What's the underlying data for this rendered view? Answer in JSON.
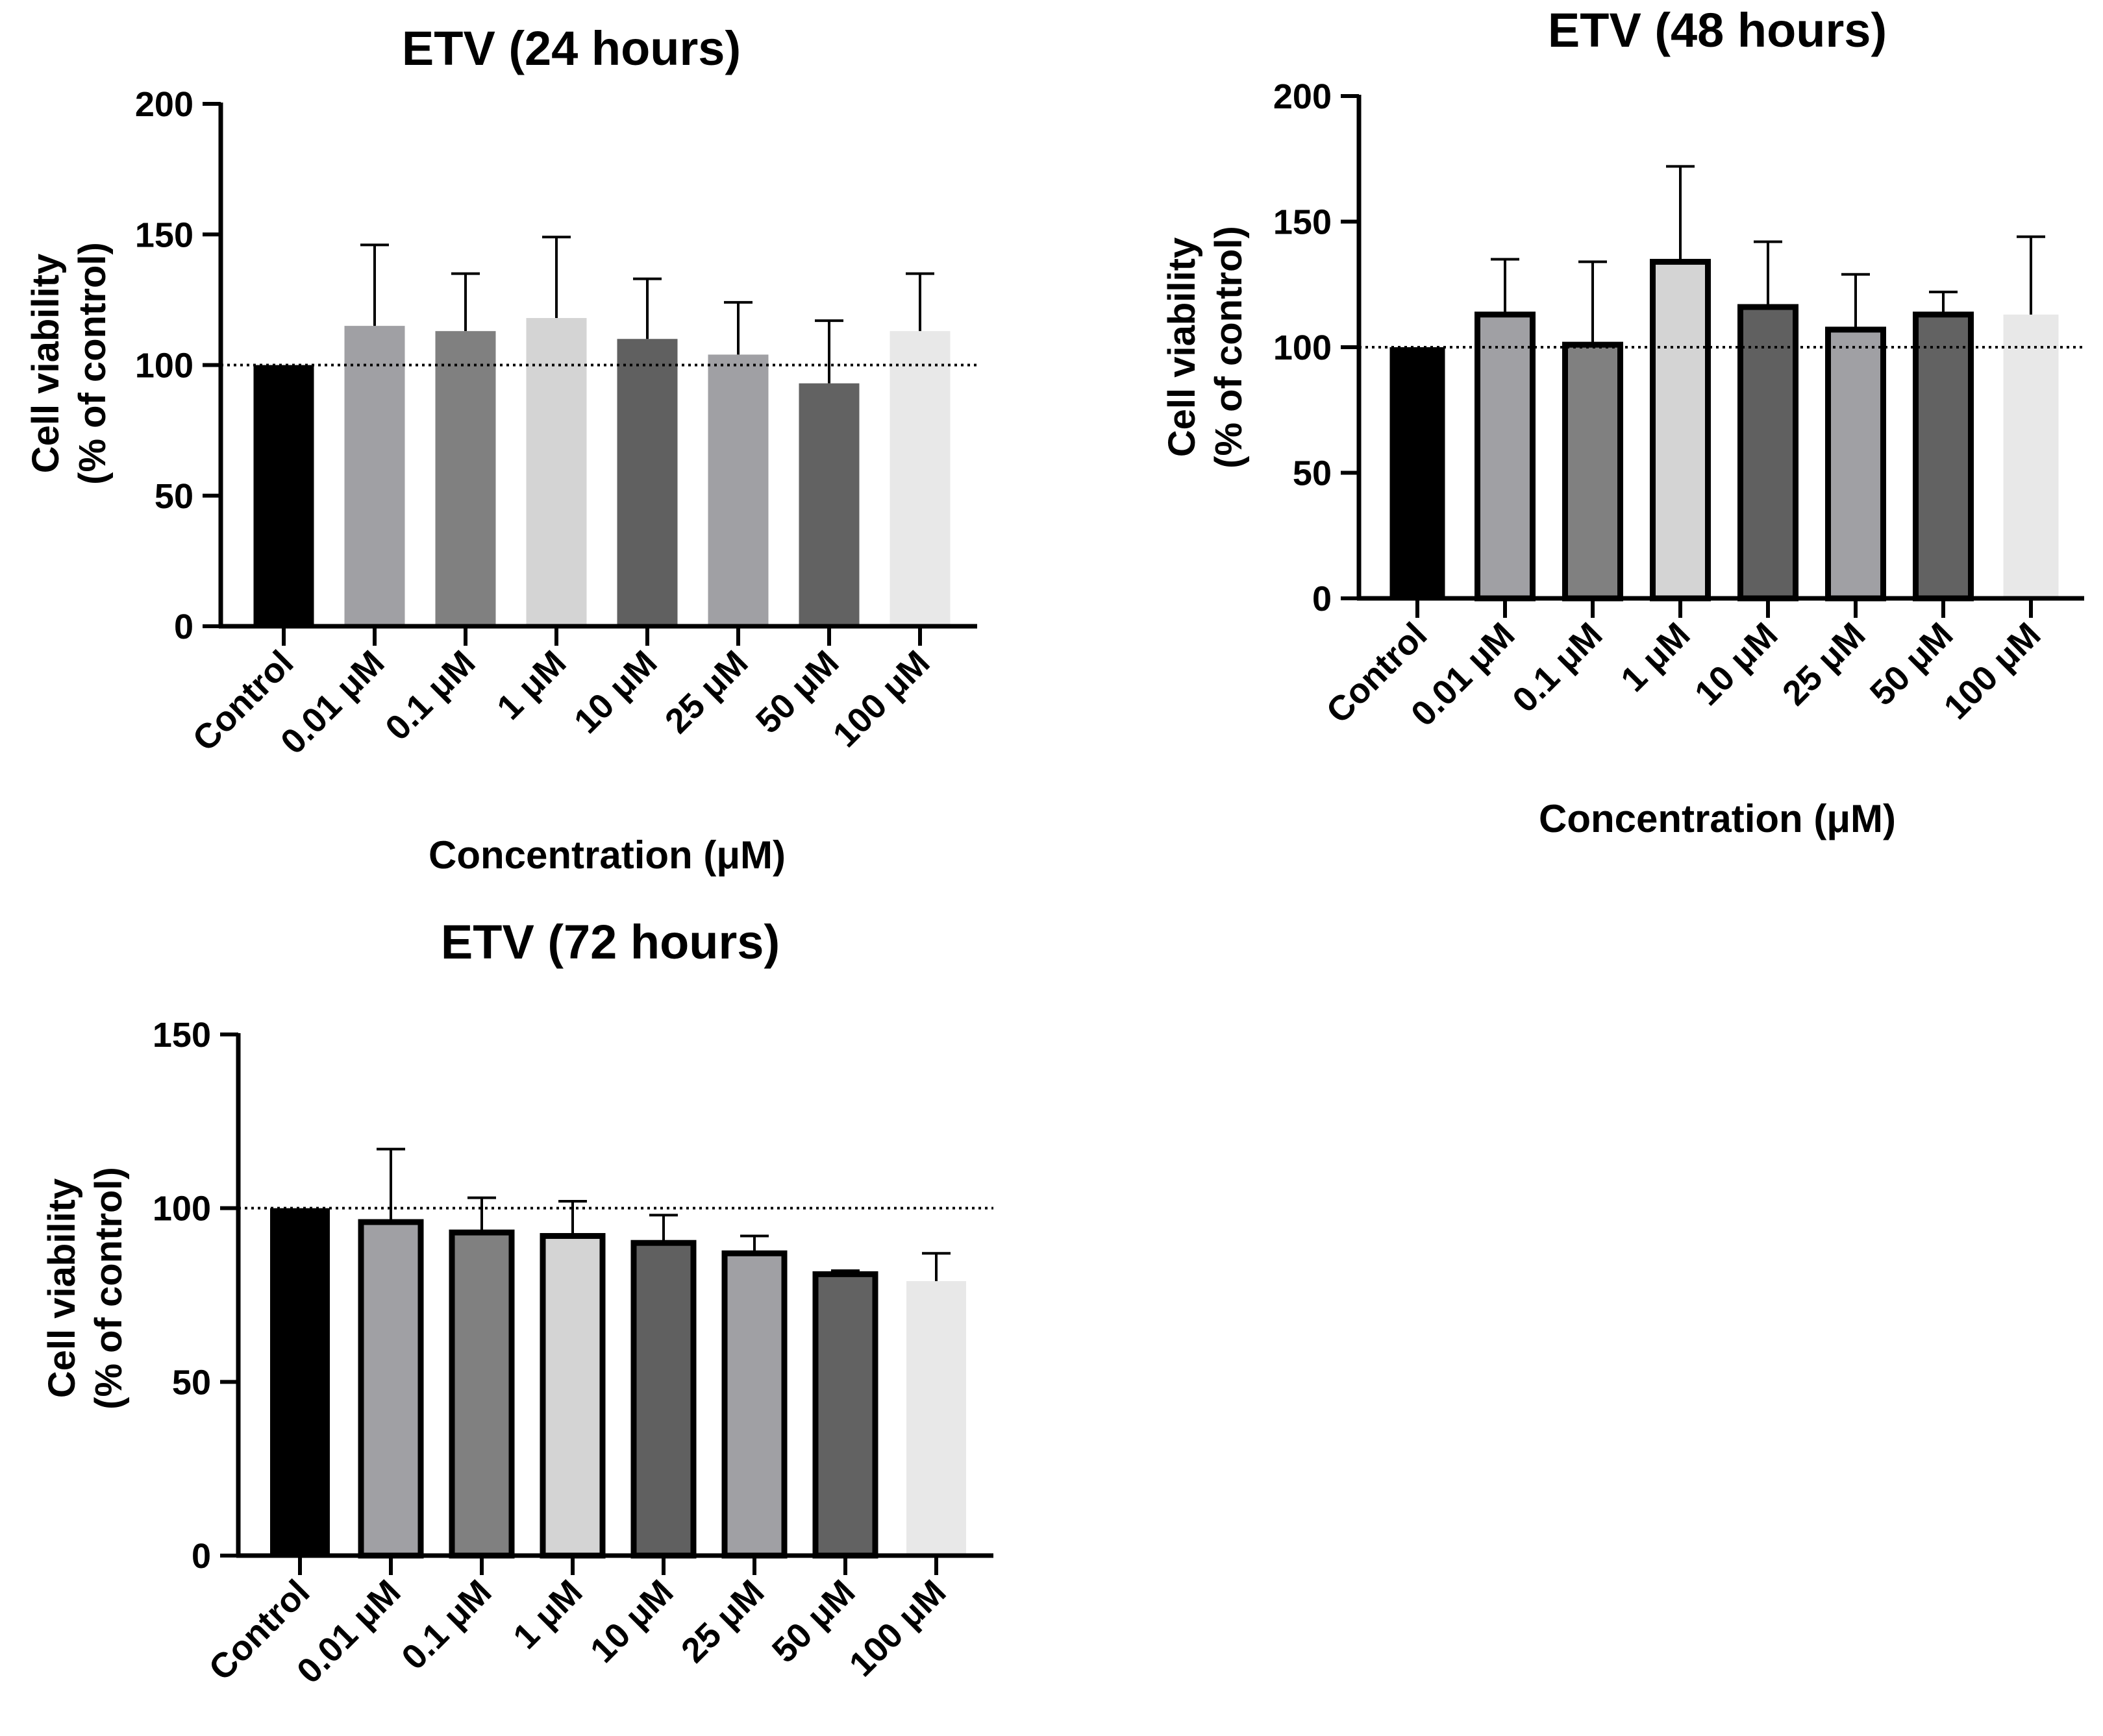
{
  "chart_data": [
    {
      "id": "p24",
      "type": "bar",
      "title": "ETV (24 hours)",
      "xlabel": "Concentration (μM)",
      "ylabel_line1": "Cell viability",
      "ylabel_line2": "(% of control)",
      "ylim": [
        0,
        200
      ],
      "yticks": [
        0,
        50,
        100,
        150,
        200
      ],
      "reference_line": 100,
      "categories": [
        "Control",
        "0.01 μM",
        "0.1 μM",
        "1 μM",
        "10 μM",
        "25 μM",
        "50 μM",
        "100 μM"
      ],
      "values": [
        100,
        115,
        113,
        118,
        110,
        104,
        93,
        113
      ],
      "errors": [
        0,
        31,
        22,
        31,
        23,
        20,
        24,
        22
      ],
      "bar_outline": false
    },
    {
      "id": "p48",
      "type": "bar",
      "title": "ETV (48 hours)",
      "xlabel": "Concentration (μM)",
      "ylabel_line1": "Cell viability",
      "ylabel_line2": "(% of control)",
      "ylim": [
        0,
        200
      ],
      "yticks": [
        0,
        50,
        100,
        150,
        200
      ],
      "reference_line": 100,
      "categories": [
        "Control",
        "0.01 μM",
        "0.1 μM",
        "1 μM",
        "10 μM",
        "25 μM",
        "50 μM",
        "100 μM"
      ],
      "values": [
        100,
        113,
        101,
        134,
        116,
        107,
        113,
        113
      ],
      "errors": [
        0,
        22,
        33,
        38,
        26,
        22,
        9,
        31
      ],
      "bar_outline": true
    },
    {
      "id": "p72",
      "type": "bar",
      "title": "ETV (72 hours)",
      "xlabel": "",
      "ylabel_line1": "Cell viability",
      "ylabel_line2": "(% of control)",
      "ylim": [
        0,
        150
      ],
      "yticks": [
        0,
        50,
        100,
        150
      ],
      "reference_line": 100,
      "categories": [
        "Control",
        "0.01 μM",
        "0.1 μM",
        "1 μM",
        "10 μM",
        "25 μM",
        "50 μM",
        "100 μM"
      ],
      "values": [
        100,
        96,
        93,
        92,
        90,
        87,
        81,
        79
      ],
      "errors": [
        0,
        21,
        10,
        10,
        8,
        5,
        1,
        8
      ],
      "bar_outline": true
    }
  ],
  "colors": {
    "bars": [
      "#000000",
      "#a0a0a4",
      "#808080",
      "#d4d4d4",
      "#606060",
      "#a0a0a4",
      "#626262",
      "#e8e8e8"
    ],
    "axis": "#000000",
    "outline": "#000000"
  }
}
